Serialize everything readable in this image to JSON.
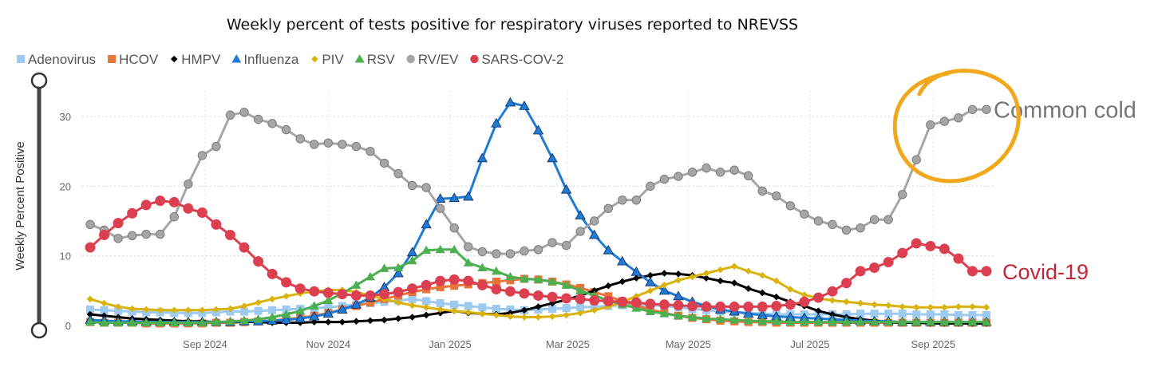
{
  "chart_data": {
    "type": "line",
    "title": "Weekly percent of tests positive for respiratory viruses reported to NREVSS",
    "ylabel": "Weekly Percent Positive",
    "xlabel": "",
    "ylim": [
      0,
      33
    ],
    "yticks": [
      0,
      10,
      20,
      30
    ],
    "grid": true,
    "legend_position": "top-left",
    "x_start": "2024-07-06",
    "x_end": "2025-09-27",
    "num_weeks": 65,
    "x_tick_labels": [
      {
        "label": "Sep 2024",
        "week": 8.2
      },
      {
        "label": "Nov 2024",
        "week": 17
      },
      {
        "label": "Jan 2025",
        "week": 25.7
      },
      {
        "label": "Mar 2025",
        "week": 34.1
      },
      {
        "label": "May 2025",
        "week": 42.7
      },
      {
        "label": "Jul 2025",
        "week": 51.4
      },
      {
        "label": "Sep 2025",
        "week": 60.2
      }
    ],
    "series": [
      {
        "name": "Adenovirus",
        "color": "#9ccaf0",
        "marker": "square",
        "values": [
          2.3,
          2.2,
          2.1,
          2,
          1.9,
          1.9,
          1.8,
          1.8,
          1.8,
          1.9,
          2,
          2,
          2.1,
          2.2,
          2.3,
          2.4,
          2.5,
          2.6,
          2.8,
          3,
          3.2,
          3.4,
          3.6,
          3.8,
          3.5,
          3.2,
          3,
          2.8,
          2.6,
          2.4,
          2.3,
          2.2,
          2.3,
          2.4,
          2.5,
          2.6,
          2.7,
          2.8,
          2.9,
          3,
          2.9,
          2.8,
          2.6,
          2.4,
          2.2,
          2,
          1.9,
          1.8,
          1.7,
          1.6,
          1.6,
          1.6,
          1.6,
          1.6,
          1.6,
          1.7,
          1.7,
          1.7,
          1.7,
          1.6,
          1.6,
          1.6,
          1.5,
          1.5,
          1.5
        ]
      },
      {
        "name": "HCOV",
        "color": "#e8743b",
        "marker": "square",
        "values": [
          0.5,
          0.4,
          0.4,
          0.4,
          0.3,
          0.3,
          0.3,
          0.3,
          0.3,
          0.4,
          0.4,
          0.5,
          0.6,
          0.7,
          0.9,
          1.1,
          1.4,
          1.8,
          2.3,
          2.8,
          3.3,
          3.8,
          4.3,
          4.8,
          5.2,
          5.5,
          5.7,
          5.9,
          6.1,
          6.3,
          6.5,
          6.7,
          6.6,
          6.3,
          5.9,
          5.4,
          4.8,
          4.2,
          3.5,
          2.9,
          2.3,
          1.8,
          1.4,
          1.1,
          0.9,
          0.7,
          0.6,
          0.5,
          0.5,
          0.4,
          0.4,
          0.4,
          0.4,
          0.4,
          0.4,
          0.4,
          0.4,
          0.4,
          0.4,
          0.4,
          0.4,
          0.4,
          0.4,
          0.4,
          0.4
        ]
      },
      {
        "name": "HMPV",
        "color": "#000000",
        "marker": "diamond",
        "values": [
          1.6,
          1.4,
          1.2,
          1,
          0.9,
          0.8,
          0.7,
          0.6,
          0.6,
          0.5,
          0.5,
          0.5,
          0.5,
          0.4,
          0.4,
          0.4,
          0.5,
          0.5,
          0.5,
          0.6,
          0.7,
          0.8,
          1,
          1.2,
          1.5,
          1.8,
          2.1,
          1.8,
          1.7,
          1.6,
          1.8,
          2.2,
          2.7,
          3.2,
          3.7,
          4.3,
          5,
          5.7,
          6.3,
          6.8,
          7.2,
          7.5,
          7.4,
          7.2,
          6.8,
          6.4,
          6.1,
          5.3,
          4.7,
          4.1,
          3.4,
          2.8,
          2.1,
          1.6,
          1.2,
          0.9,
          0.7,
          0.5,
          0.4,
          0.4,
          0.3,
          0.3,
          0.3,
          0.3,
          0.3
        ]
      },
      {
        "name": "Influenza",
        "color": "#1f7bd6",
        "marker": "triangle",
        "values": [
          0.8,
          0.7,
          0.6,
          0.6,
          0.5,
          0.5,
          0.5,
          0.5,
          0.5,
          0.5,
          0.5,
          0.6,
          0.6,
          0.7,
          0.8,
          1,
          1.3,
          1.7,
          2.3,
          3,
          4,
          5.5,
          7.5,
          10.5,
          14.5,
          18.2,
          18.3,
          18.5,
          24,
          29,
          32,
          31.5,
          28,
          24,
          19.5,
          15.8,
          13,
          10.8,
          9.2,
          7.7,
          6.2,
          5,
          4.2,
          3.4,
          2.8,
          2.3,
          2,
          1.7,
          1.5,
          1.3,
          1.2,
          1.1,
          1,
          0.9,
          0.8,
          0.7,
          0.6,
          0.6,
          0.5,
          0.5,
          0.5,
          0.5,
          0.5,
          0.5,
          0.5
        ]
      },
      {
        "name": "PIV",
        "color": "#d9b20a",
        "marker": "diamond",
        "values": [
          3.8,
          3.2,
          2.7,
          2.4,
          2.3,
          2.2,
          2.2,
          2.2,
          2.2,
          2.3,
          2.4,
          2.8,
          3.3,
          3.8,
          4.2,
          4.6,
          4.9,
          5.1,
          5.1,
          4.8,
          4.3,
          3.8,
          3.3,
          2.9,
          2.6,
          2.3,
          2.1,
          1.9,
          1.7,
          1.5,
          1.3,
          1.2,
          1.2,
          1.3,
          1.5,
          1.8,
          2.2,
          2.7,
          3.4,
          4.2,
          5,
          5.8,
          6.5,
          7,
          7.5,
          8,
          8.5,
          7.8,
          7.2,
          6.4,
          5.2,
          4.4,
          3.9,
          3.6,
          3.4,
          3.2,
          3,
          2.9,
          2.7,
          2.6,
          2.6,
          2.6,
          2.7,
          2.7,
          2.6
        ]
      },
      {
        "name": "RSV",
        "color": "#4caf50",
        "marker": "triangle",
        "values": [
          0.5,
          0.4,
          0.4,
          0.4,
          0.4,
          0.4,
          0.4,
          0.4,
          0.4,
          0.5,
          0.6,
          0.7,
          0.9,
          1.2,
          1.6,
          2.1,
          2.8,
          3.6,
          4.6,
          5.8,
          7,
          8.2,
          8.3,
          9.3,
          10.8,
          10.9,
          10.9,
          9,
          8.3,
          7.8,
          7,
          6.7,
          6.6,
          6.3,
          5.8,
          5,
          4.3,
          3.6,
          3,
          2.5,
          2,
          1.7,
          1.4,
          1.2,
          1,
          0.9,
          0.8,
          0.7,
          0.6,
          0.6,
          0.5,
          0.5,
          0.5,
          0.5,
          0.5,
          0.5,
          0.5,
          0.5,
          0.5,
          0.5,
          0.5,
          0.5,
          0.5,
          0.5,
          0.5
        ]
      },
      {
        "name": "RV/EV",
        "color": "#a6a6a6",
        "marker": "circle",
        "values": [
          14.5,
          13.7,
          12.5,
          12.9,
          13.1,
          13.1,
          15.6,
          20.3,
          24.4,
          25.7,
          30.2,
          30.6,
          29.6,
          29,
          28.1,
          26.8,
          26,
          26.2,
          26,
          25.7,
          25,
          23.3,
          21.8,
          20.1,
          19.8,
          16.8,
          14,
          11.3,
          10.6,
          10.3,
          10.3,
          10.7,
          10.9,
          11.9,
          11.5,
          13.5,
          15,
          16.8,
          18,
          18,
          20,
          21,
          21.4,
          22,
          22.6,
          22,
          22.3,
          21.5,
          19.3,
          18.6,
          17.2,
          16,
          15,
          14.5,
          13.7,
          14,
          15.2,
          15.2,
          18.8,
          23.8,
          28.8,
          29.3,
          29.8,
          31,
          31
        ]
      },
      {
        "name": "SARS-COV-2",
        "color": "#dc3f4f",
        "marker": "circle",
        "values": [
          11.2,
          13,
          14.7,
          16.1,
          17.3,
          17.9,
          17.7,
          16.8,
          16.2,
          14.5,
          13,
          11.2,
          9.2,
          7.4,
          6.2,
          5.3,
          4.9,
          4.7,
          4.5,
          4.3,
          4.3,
          4.5,
          4.8,
          5.3,
          5.8,
          6.4,
          6.6,
          6.4,
          5.8,
          5.2,
          4.9,
          4.6,
          4.3,
          4.1,
          3.9,
          3.8,
          3.6,
          3.5,
          3.4,
          3.3,
          3.1,
          3,
          2.9,
          2.8,
          2.7,
          2.7,
          2.7,
          2.7,
          2.7,
          2.8,
          3,
          3.4,
          4,
          4.9,
          6.1,
          7.8,
          8.3,
          9.1,
          10.4,
          11.8,
          11.4,
          11,
          9.6,
          7.8,
          7.8
        ]
      }
    ],
    "annotations": [
      {
        "text": "Common cold",
        "series": "RV/EV"
      },
      {
        "text": "Covid-19",
        "series": "SARS-COV-2"
      }
    ]
  }
}
